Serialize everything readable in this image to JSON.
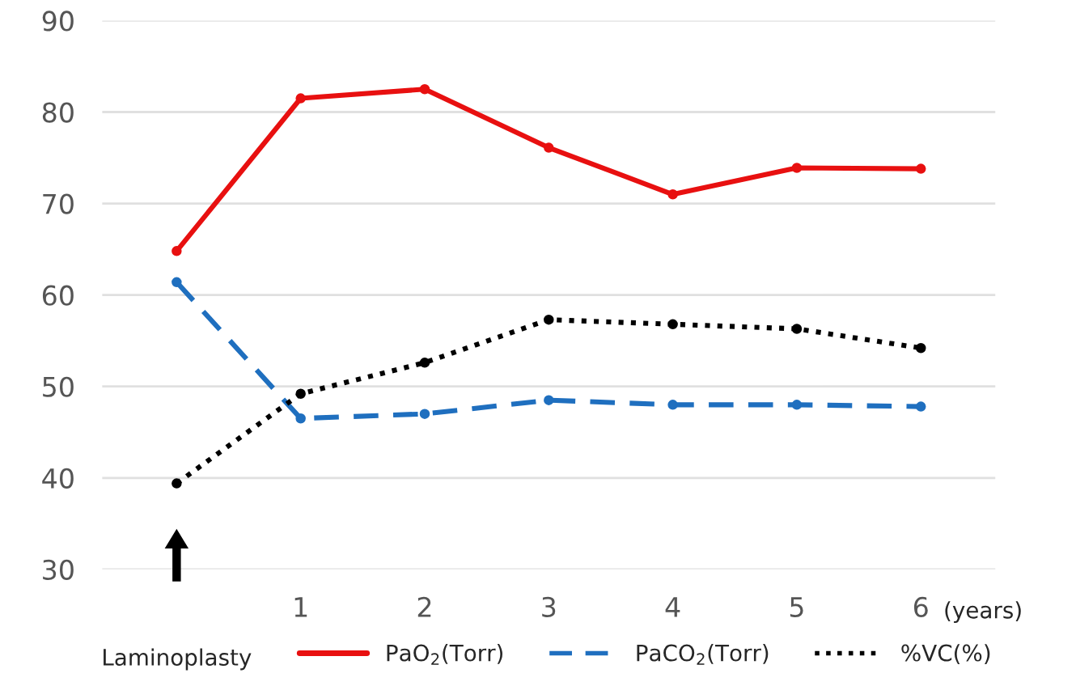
{
  "chart_data": {
    "type": "line",
    "categories": [
      null,
      "1",
      "2",
      "3",
      "4",
      "5",
      "6"
    ],
    "series": [
      {
        "name": "PaO$_{2}$(Torr)",
        "color": "#e81010",
        "line_style": "solid",
        "values": [
          64.8,
          81.5,
          82.5,
          76.1,
          71.0,
          73.9,
          73.8
        ]
      },
      {
        "name": "PaCO$_{2}$(Torr)",
        "color": "#1f6fbf",
        "line_style": "dashed",
        "values": [
          61.4,
          46.5,
          47.0,
          48.5,
          48.0,
          48.0,
          47.8
        ]
      },
      {
        "name": "%VC(%)",
        "color": "#000000",
        "line_style": "dotted",
        "values": [
          39.4,
          49.2,
          52.6,
          57.3,
          56.8,
          56.3,
          54.2
        ]
      }
    ],
    "ylim": [
      30,
      90
    ],
    "yticks": [
      30,
      40,
      50,
      60,
      70,
      80,
      90
    ],
    "grid": "y",
    "legend": "bottom",
    "marker": "circle",
    "annotations": [
      "Laminoplasty",
      "(years)"
    ]
  }
}
